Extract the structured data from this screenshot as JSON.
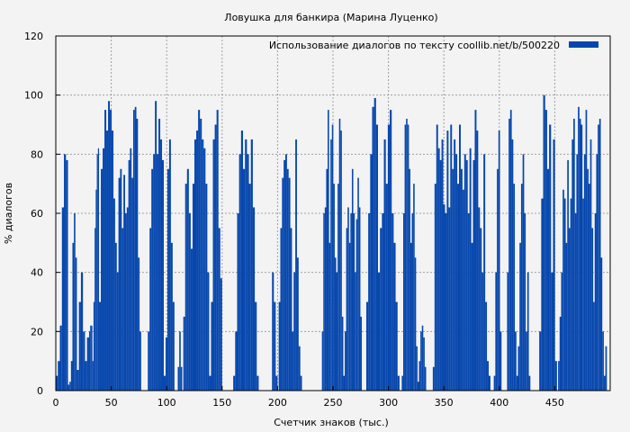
{
  "chart_data": {
    "type": "bar",
    "title": "Ловушка для банкира (Марина Луценко)",
    "xlabel": "Счетчик знаков (тыс.)",
    "ylabel": "% диалогов",
    "xlim": [
      0,
      500
    ],
    "ylim": [
      0,
      120
    ],
    "xticks": [
      0,
      50,
      100,
      150,
      200,
      250,
      300,
      350,
      400,
      450
    ],
    "yticks": [
      0,
      20,
      40,
      60,
      80,
      100,
      120
    ],
    "grid": true,
    "legend": {
      "label": "Использование диалогов по тексту  coollib.net/b/500220",
      "position": "top-right"
    },
    "color": "#0747ad",
    "segments": [
      {
        "x0": 0,
        "x1": 11,
        "values": [
          5,
          10,
          22,
          62,
          80,
          78
        ]
      },
      {
        "x0": 11,
        "x1": 19,
        "values": [
          2,
          3,
          10,
          50,
          60,
          45
        ]
      },
      {
        "x0": 19,
        "x1": 30,
        "values": [
          7,
          30,
          40,
          20,
          10,
          18
        ]
      },
      {
        "x0": 30,
        "x1": 39,
        "values": [
          20,
          22,
          22,
          10,
          30,
          55,
          68,
          80,
          82
        ]
      },
      {
        "x0": 39,
        "x1": 52,
        "values": [
          30,
          75,
          82,
          95,
          88,
          98,
          95,
          88
        ]
      },
      {
        "x0": 52,
        "x1": 64,
        "values": [
          65,
          50,
          40,
          72,
          75,
          55,
          73,
          60
        ]
      },
      {
        "x0": 64,
        "x1": 77,
        "values": [
          62,
          78,
          82,
          72,
          95,
          96,
          92,
          45,
          20
        ]
      },
      {
        "x0": 83,
        "x1": 107,
        "values": [
          20,
          55,
          75,
          80,
          98,
          80,
          92,
          85,
          78,
          5,
          18,
          75,
          85,
          50,
          30
        ]
      },
      {
        "x0": 110,
        "x1": 114,
        "values": [
          8,
          20,
          8
        ]
      },
      {
        "x0": 115,
        "x1": 150,
        "values": [
          25,
          70,
          75,
          60,
          48,
          70,
          85,
          88,
          95,
          92,
          85,
          82,
          70,
          40,
          5,
          30,
          85,
          90,
          95,
          55,
          38
        ]
      },
      {
        "x0": 160,
        "x1": 183,
        "values": [
          5,
          20,
          60,
          80,
          88,
          75,
          85,
          80,
          70,
          85,
          62,
          30,
          5
        ]
      },
      {
        "x0": 195,
        "x1": 200,
        "values": [
          40,
          30,
          5
        ]
      },
      {
        "x0": 201,
        "x1": 222,
        "values": [
          30,
          55,
          72,
          78,
          80,
          75,
          72,
          55,
          20,
          40,
          85,
          45,
          15,
          5
        ]
      },
      {
        "x0": 240,
        "x1": 276,
        "values": [
          20,
          60,
          62,
          75,
          95,
          50,
          85,
          90,
          70,
          45,
          40,
          70,
          92,
          88,
          25,
          5,
          20,
          55,
          62,
          50,
          60,
          75,
          60,
          40,
          58,
          72,
          62,
          25
        ]
      },
      {
        "x0": 280,
        "x1": 310,
        "values": [
          30,
          60,
          80,
          96,
          99,
          90,
          40,
          55,
          60,
          85,
          70,
          90,
          95,
          60,
          50,
          30,
          5
        ]
      },
      {
        "x0": 312,
        "x1": 334,
        "values": [
          5,
          60,
          90,
          92,
          90,
          75,
          50,
          60,
          70,
          45,
          15,
          3,
          10,
          20,
          22,
          18,
          8
        ]
      },
      {
        "x0": 340,
        "x1": 392,
        "values": [
          8,
          70,
          90,
          82,
          78,
          85,
          63,
          60,
          88,
          62,
          90,
          75,
          85,
          80,
          70,
          90,
          75,
          68,
          80,
          78,
          60,
          82,
          50,
          78,
          95,
          88,
          62,
          55,
          40,
          80,
          30,
          10,
          5
        ]
      },
      {
        "x0": 395,
        "x1": 402,
        "values": [
          5,
          40,
          75,
          88,
          20
        ]
      },
      {
        "x0": 407,
        "x1": 428,
        "values": [
          40,
          92,
          95,
          85,
          70,
          20,
          5,
          15,
          50,
          70,
          80,
          60,
          20,
          40,
          5
        ]
      },
      {
        "x0": 436,
        "x1": 452,
        "values": [
          20,
          65,
          100,
          95,
          75,
          90,
          40,
          85,
          10
        ]
      },
      {
        "x0": 453,
        "x1": 497,
        "values": [
          10,
          25,
          40,
          68,
          65,
          50,
          78,
          55,
          65,
          85,
          92,
          60,
          80,
          96,
          92,
          90,
          65,
          80,
          95,
          75,
          70,
          85,
          55,
          30,
          60,
          80,
          90,
          92,
          45,
          20,
          5,
          15
        ]
      }
    ]
  }
}
